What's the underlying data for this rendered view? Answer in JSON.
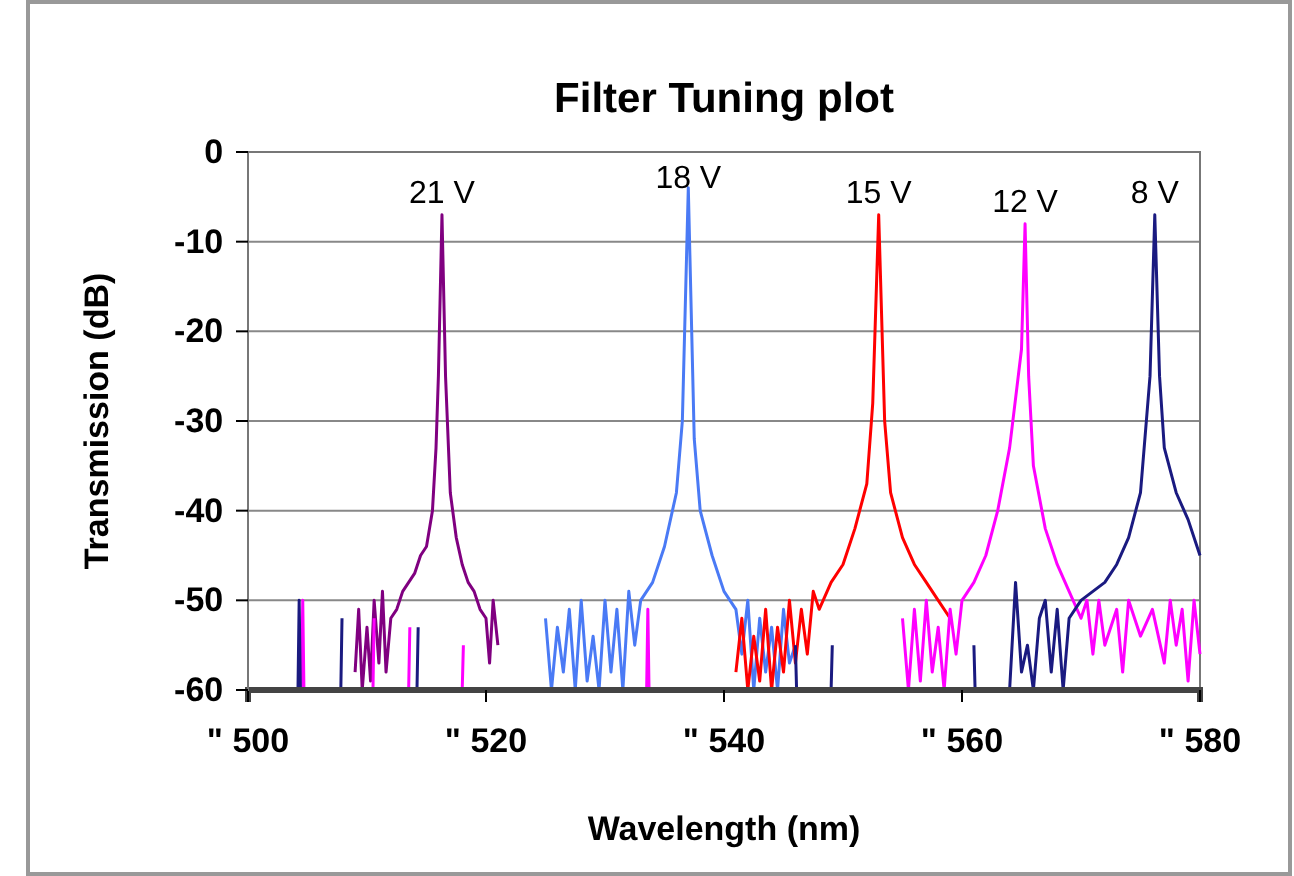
{
  "chart_data": {
    "type": "line",
    "title": "Filter Tuning plot",
    "xlabel": "Wavelength (nm)",
    "ylabel": "Transmission (dB)",
    "xlim": [
      500,
      580
    ],
    "xticks": [
      {
        "value": 500,
        "label": "\" 500"
      },
      {
        "value": 520,
        "label": "\" 520"
      },
      {
        "value": 540,
        "label": "\" 540"
      },
      {
        "value": 560,
        "label": "\" 560"
      },
      {
        "value": 580,
        "label": "\" 580"
      }
    ],
    "ylim": [
      -60,
      0
    ],
    "yticks": [
      -60,
      -50,
      -40,
      -30,
      -20,
      -10,
      0
    ],
    "grid": "y",
    "line_style": "solid",
    "marker": "none",
    "series": [
      {
        "name": "21 V",
        "color": "#800080",
        "x": [
          509,
          509.3,
          509.6,
          510,
          510.3,
          510.6,
          511,
          511.3,
          511.6,
          512,
          512.5,
          513,
          513.5,
          514,
          514.5,
          515,
          515.5,
          515.8,
          516,
          516.3,
          516.6,
          517,
          517.5,
          518,
          518.5,
          519,
          519.5,
          520,
          520.3,
          520.6,
          521
        ],
        "values": [
          -58,
          -51,
          -60,
          -53,
          -59,
          -50,
          -57,
          -49,
          -58,
          -52,
          -51,
          -49,
          -48,
          -47,
          -45,
          -44,
          -40,
          -33,
          -25,
          -7,
          -25,
          -38,
          -43,
          -46,
          -48,
          -49,
          -51,
          -52,
          -57,
          -50,
          -55
        ]
      },
      {
        "name": "18 V",
        "color": "#4a7af5",
        "x": [
          525,
          525.5,
          526,
          526.5,
          527,
          527.5,
          528,
          528.5,
          529,
          529.5,
          530,
          530.5,
          531,
          531.5,
          532,
          532.5,
          533,
          534,
          535,
          536,
          536.5,
          537,
          537.5,
          538,
          539,
          540,
          541,
          541.5,
          542,
          542.5,
          543,
          543.5,
          544,
          544.5,
          545,
          545.5,
          546
        ],
        "values": [
          -52,
          -60,
          -53,
          -58,
          -51,
          -60,
          -50,
          -59,
          -54,
          -60,
          -50,
          -58,
          -51,
          -60,
          -49,
          -55,
          -50,
          -48,
          -44,
          -38,
          -30,
          -4,
          -32,
          -40,
          -45,
          -49,
          -51,
          -56,
          -50,
          -60,
          -52,
          -58,
          -53,
          -60,
          -51,
          -57,
          -55
        ]
      },
      {
        "name": "15 V",
        "color": "#ff0000",
        "x": [
          541,
          541.5,
          542,
          542.5,
          543,
          543.5,
          544,
          544.5,
          545,
          545.5,
          546,
          546.5,
          547,
          547.5,
          548,
          549,
          550,
          551,
          552,
          552.5,
          553,
          553.5,
          554,
          555,
          556,
          557,
          558,
          559
        ],
        "values": [
          -58,
          -52,
          -60,
          -54,
          -59,
          -51,
          -60,
          -53,
          -58,
          -50,
          -57,
          -51,
          -56,
          -49,
          -51,
          -48,
          -46,
          -42,
          -37,
          -28,
          -7,
          -30,
          -38,
          -43,
          -46,
          -48,
          -50,
          -52
        ]
      },
      {
        "name": "12 V",
        "color": "#ff00ff",
        "x": [
          504.5,
          504.6,
          504.7,
          null,
          510.5,
          510.6,
          null,
          513.5,
          513.6,
          null,
          518,
          518.1,
          null,
          533.5,
          533.6,
          533.7,
          null,
          555,
          555.5,
          556,
          556.5,
          557,
          557.5,
          558,
          558.5,
          559,
          559.5,
          560,
          561,
          562,
          563,
          564,
          565,
          565.3,
          565.6,
          566,
          567,
          568,
          569,
          570,
          570.5,
          571,
          571.5,
          572,
          573,
          573.5,
          574,
          575,
          576,
          577,
          577.5,
          578,
          578.5,
          579,
          579.5,
          580
        ],
        "values": [
          -60,
          -50,
          -60,
          null,
          -60,
          -52,
          null,
          -60,
          -53,
          null,
          -60,
          -55,
          null,
          -60,
          -51,
          -60,
          null,
          -52,
          -60,
          -51,
          -59,
          -50,
          -58,
          -53,
          -60,
          -51,
          -56,
          -50,
          -48,
          -45,
          -40,
          -33,
          -22,
          -8,
          -25,
          -35,
          -42,
          -46,
          -49,
          -52,
          -50,
          -56,
          -50,
          -55,
          -51,
          -58,
          -50,
          -54,
          -51,
          -57,
          -50,
          -55,
          -51,
          -59,
          -50,
          -56
        ]
      },
      {
        "name": "8 V",
        "color": "#1a1a80",
        "x": [
          504.2,
          504.3,
          504.4,
          null,
          507.8,
          507.9,
          null,
          514.2,
          514.3,
          null,
          546,
          546.1,
          null,
          549,
          549.1,
          null,
          561,
          561.1,
          null,
          564,
          564.5,
          565,
          565.5,
          566,
          566.5,
          567,
          567.5,
          568,
          568.5,
          569,
          570,
          572,
          573,
          574,
          575,
          575.8,
          576.2,
          576.6,
          577,
          578,
          579,
          580
        ],
        "values": [
          -60,
          -50,
          -60,
          null,
          -60,
          -52,
          null,
          -60,
          -53,
          null,
          -55,
          -60,
          null,
          -60,
          -55,
          null,
          -55,
          -60,
          null,
          -60,
          -48,
          -58,
          -55,
          -60,
          -52,
          -50,
          -58,
          -51,
          -60,
          -52,
          -50,
          -48,
          -46,
          -43,
          -38,
          -25,
          -7,
          -25,
          -33,
          -38,
          -41,
          -45
        ]
      }
    ]
  }
}
